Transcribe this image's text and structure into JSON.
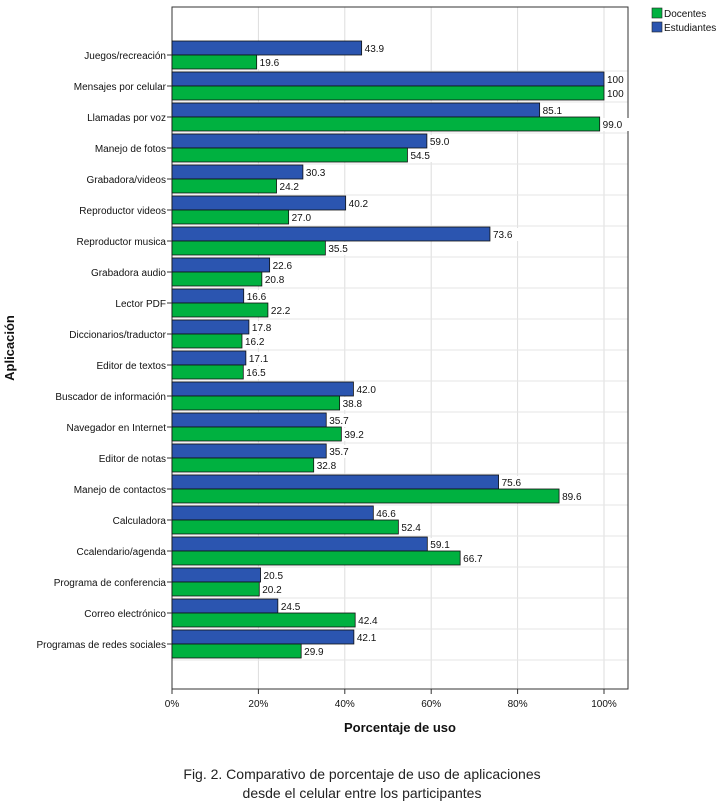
{
  "chart_data": {
    "type": "bar",
    "orientation": "horizontal",
    "xlabel": "Porcentaje de uso",
    "ylabel": "Aplicación",
    "xlim": [
      0,
      105
    ],
    "xticks": [
      "0%",
      "20%",
      "40%",
      "60%",
      "80%",
      "100%"
    ],
    "grid": true,
    "legend_position": "top-right",
    "categories": [
      "Juegos/recreación",
      "Mensajes por celular",
      "Llamadas por voz",
      "Manejo de fotos",
      "Grabadora/videos",
      "Reproductor videos",
      "Reproductor musica",
      "Grabadora audio",
      "Lector PDF",
      "Diccionarios/traductor",
      "Editor de textos",
      "Buscador de información",
      "Navegador en Internet",
      "Editor de notas",
      "Manejo de contactos",
      "Calculadora",
      "Ccalendario/agenda",
      "Programa de conferencia",
      "Correo electrónico",
      "Programas de redes sociales"
    ],
    "series": [
      {
        "name": "Estudiantes",
        "color": "#2b55b0",
        "values": [
          43.9,
          100,
          85.1,
          59.0,
          30.3,
          40.2,
          73.6,
          22.6,
          16.6,
          17.8,
          17.1,
          42.0,
          35.7,
          35.7,
          75.6,
          46.6,
          59.1,
          20.5,
          24.5,
          42.1
        ],
        "labels": [
          "43.9",
          "100",
          "85.1",
          "59.0",
          "30.3",
          "40.2",
          "73.6",
          "22.6",
          "16.6",
          "17.8",
          "17.1",
          "42.0",
          "35.7",
          "35.7",
          "75.6",
          "46.6",
          "59.1",
          "20.5",
          "24.5",
          "42.1"
        ]
      },
      {
        "name": "Docentes",
        "color": "#00b140",
        "values": [
          19.6,
          100,
          99.0,
          54.5,
          24.2,
          27.0,
          35.5,
          20.8,
          22.2,
          16.2,
          16.5,
          38.8,
          39.2,
          32.8,
          89.6,
          52.4,
          66.7,
          20.2,
          42.4,
          29.9
        ],
        "labels": [
          "19.6",
          "100",
          "99.0",
          "54.5",
          "24.2",
          "27.0",
          "35.5",
          "20.8",
          "22.2",
          "16.2",
          "16.5",
          "38.8",
          "39.2",
          "32.8",
          "89.6",
          "52.4",
          "66.7",
          "20.2",
          "42.4",
          "29.9"
        ]
      }
    ],
    "legend": [
      "Docentes",
      "Estudiantes"
    ]
  },
  "caption": {
    "line1": "Fig. 2. Comparativo de porcentaje de uso de aplicaciones",
    "line2": "desde el celular entre los participantes"
  }
}
